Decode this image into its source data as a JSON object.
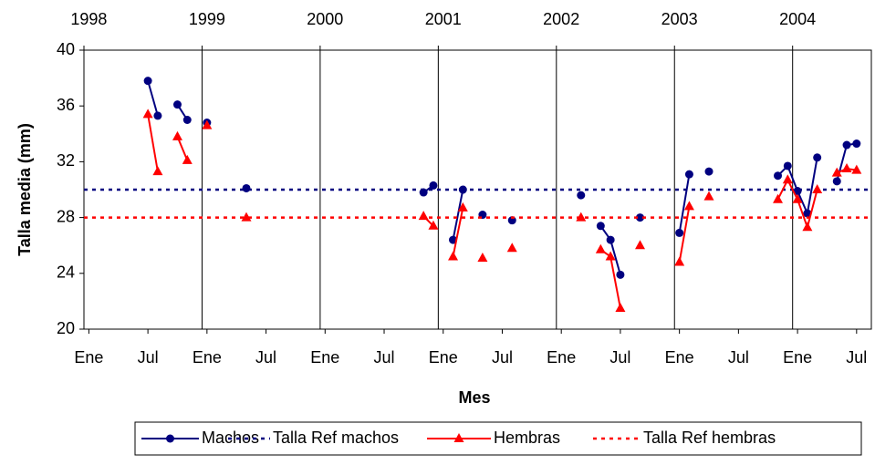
{
  "chart_data": {
    "type": "line",
    "y_label": "Talla media (mm)",
    "x_label": "Mes",
    "ylim": [
      20,
      40
    ],
    "yticks": [
      20,
      24,
      28,
      32,
      36,
      40
    ],
    "xlim": [
      "1998-01",
      "2004-08"
    ],
    "xticks": [
      {
        "value": "1998-01",
        "label": "Ene"
      },
      {
        "value": "1998-07",
        "label": "Jul"
      },
      {
        "value": "1999-01",
        "label": "Ene"
      },
      {
        "value": "1999-07",
        "label": "Jul"
      },
      {
        "value": "2000-01",
        "label": "Ene"
      },
      {
        "value": "2000-07",
        "label": "Jul"
      },
      {
        "value": "2001-01",
        "label": "Ene"
      },
      {
        "value": "2001-07",
        "label": "Jul"
      },
      {
        "value": "2002-01",
        "label": "Ene"
      },
      {
        "value": "2002-07",
        "label": "Jul"
      },
      {
        "value": "2003-01",
        "label": "Ene"
      },
      {
        "value": "2003-07",
        "label": "Jul"
      },
      {
        "value": "2004-01",
        "label": "Ene"
      },
      {
        "value": "2004-07",
        "label": "Jul"
      }
    ],
    "x2ticks": [
      {
        "value": "1998-01",
        "label": "1998"
      },
      {
        "value": "1999-01",
        "label": "1999"
      },
      {
        "value": "2000-01",
        "label": "2000"
      },
      {
        "value": "2001-01",
        "label": "2001"
      },
      {
        "value": "2002-01",
        "label": "2002"
      },
      {
        "value": "2003-01",
        "label": "2003"
      },
      {
        "value": "2004-01",
        "label": "2004"
      }
    ],
    "grid": "x",
    "x": [
      "1998-07",
      "1998-08",
      "1998-09",
      "1998-10",
      "1998-11",
      "1998-12",
      "1999-01",
      "1999-02",
      "1999-05",
      "1999-06",
      "2000-11",
      "2000-12",
      "2001-01",
      "2001-02",
      "2001-03",
      "2001-04",
      "2001-05",
      "2001-06",
      "2001-08",
      "2001-09",
      "2002-03",
      "2002-04",
      "2002-05",
      "2002-06",
      "2002-07",
      "2002-08",
      "2002-09",
      "2002-10",
      "2003-01",
      "2003-02",
      "2003-03",
      "2003-04",
      "2003-05",
      "2003-11",
      "2003-12",
      "2004-01",
      "2004-02",
      "2004-03",
      "2004-04",
      "2004-05",
      "2004-06",
      "2004-07"
    ],
    "series": [
      {
        "name": "Machos",
        "color": "#000080",
        "marker": "circle",
        "values": [
          37.8,
          35.3,
          null,
          36.1,
          35.0,
          null,
          34.8,
          null,
          30.1,
          null,
          29.8,
          30.3,
          null,
          26.4,
          30.0,
          null,
          28.2,
          null,
          27.8,
          null,
          29.6,
          null,
          27.4,
          26.4,
          23.9,
          null,
          28.0,
          null,
          26.9,
          31.1,
          null,
          31.3,
          null,
          31.0,
          31.7,
          29.9,
          28.3,
          32.3,
          null,
          30.6,
          33.2,
          33.3
        ]
      },
      {
        "name": "Talla Ref machos",
        "color": "#000080",
        "dashed": true,
        "value": 30
      },
      {
        "name": "Hembras",
        "color": "#ff0000",
        "marker": "triangle",
        "values": [
          35.4,
          31.3,
          null,
          33.8,
          32.1,
          null,
          34.6,
          null,
          28.0,
          null,
          28.1,
          27.4,
          null,
          25.2,
          28.7,
          null,
          25.1,
          null,
          25.8,
          null,
          28.0,
          null,
          25.7,
          25.2,
          21.5,
          null,
          26.0,
          null,
          24.8,
          28.8,
          null,
          29.5,
          null,
          29.3,
          30.7,
          29.3,
          27.3,
          30.0,
          null,
          31.2,
          31.5,
          31.4
        ]
      },
      {
        "name": "Talla Ref hembras",
        "color": "#ff0000",
        "dashed": true,
        "value": 28
      }
    ]
  }
}
